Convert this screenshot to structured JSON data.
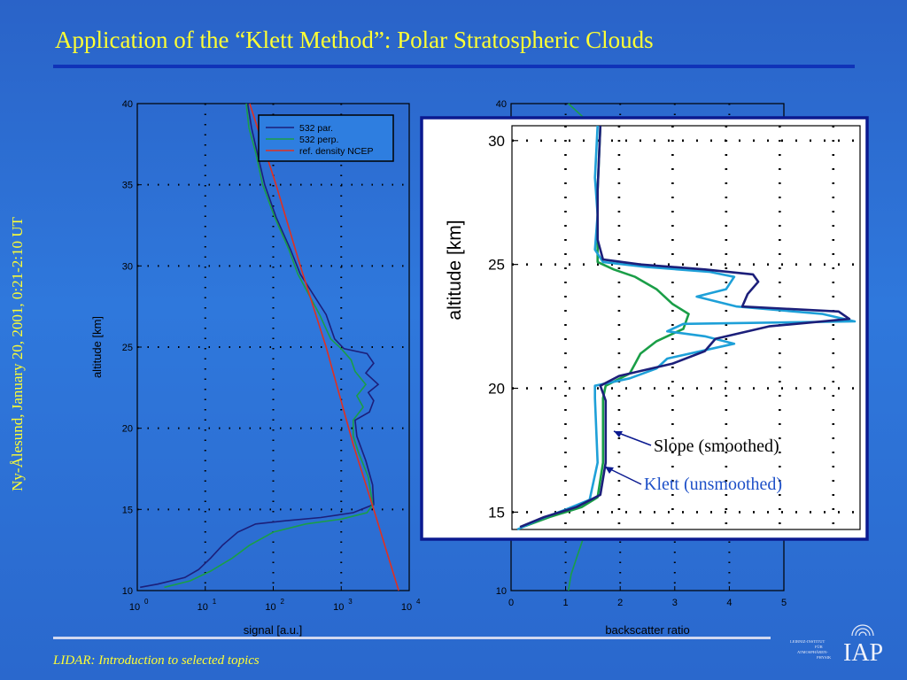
{
  "slide": {
    "title": "Application of the “Klett Method”: Polar Stratospheric Clouds",
    "side_caption": "Ny-Ålesund, January 20, 2001, 0:21-2:10 UT",
    "footer": "LIDAR: Introduction to selected topics",
    "logo_text": "IAP",
    "logo_small_lines": [
      "LEIBNIZ-INSTITUT",
      "FÜR",
      "ATMOSPHÄREN-",
      "PHYSIK"
    ]
  },
  "colors": {
    "background": "#2f78dc",
    "title_text": "#ffff33",
    "dark_blue_line": "#1c1f7a",
    "green_line": "#1a9e47",
    "red_line": "#e03020",
    "light_blue_line": "#1ea0d8",
    "inset_border": "#0b1a90"
  },
  "chart_data": [
    {
      "type": "line",
      "xlabel": "signal [a.u.]",
      "ylabel": "altitude [km]",
      "xscale": "log",
      "xlim": [
        1,
        10000
      ],
      "ylim": [
        10,
        40
      ],
      "xticks": [
        {
          "value": 1,
          "base": "10",
          "exp": "0"
        },
        {
          "value": 10,
          "base": "10",
          "exp": "1"
        },
        {
          "value": 100,
          "base": "10",
          "exp": "2"
        },
        {
          "value": 1000,
          "base": "10",
          "exp": "3"
        },
        {
          "value": 10000,
          "base": "10",
          "exp": "4"
        }
      ],
      "yticks": [
        10,
        15,
        20,
        25,
        30,
        35,
        40
      ],
      "grid": true,
      "legend_position": "top-right",
      "series": [
        {
          "name": "532 par.",
          "color": "#1c1f7a",
          "points": [
            [
              1.1,
              10.2
            ],
            [
              2,
              10.4
            ],
            [
              5,
              10.8
            ],
            [
              8,
              11.3
            ],
            [
              12,
              12
            ],
            [
              18,
              12.8
            ],
            [
              30,
              13.6
            ],
            [
              55,
              14.1
            ],
            [
              150,
              14.3
            ],
            [
              500,
              14.5
            ],
            [
              1500,
              14.8
            ],
            [
              3000,
              15.3
            ],
            [
              2900,
              16.5
            ],
            [
              2300,
              18
            ],
            [
              1700,
              19.5
            ],
            [
              1600,
              20.5
            ],
            [
              2600,
              21
            ],
            [
              3000,
              21.7
            ],
            [
              2500,
              22.2
            ],
            [
              3500,
              22.7
            ],
            [
              2300,
              23.4
            ],
            [
              3000,
              24
            ],
            [
              2400,
              24.6
            ],
            [
              1100,
              24.9
            ],
            [
              800,
              25.5
            ],
            [
              600,
              27
            ],
            [
              250,
              29.5
            ],
            [
              180,
              31
            ],
            [
              110,
              33
            ],
            [
              75,
              35
            ],
            [
              58,
              37
            ],
            [
              48,
              38.5
            ],
            [
              42,
              40
            ]
          ]
        },
        {
          "name": "532 perp.",
          "color": "#1a9e47",
          "points": [
            [
              2.5,
              10.2
            ],
            [
              6,
              10.6
            ],
            [
              12,
              11.2
            ],
            [
              25,
              12
            ],
            [
              45,
              12.8
            ],
            [
              100,
              13.6
            ],
            [
              300,
              14.1
            ],
            [
              1000,
              14.4
            ],
            [
              2400,
              14.8
            ],
            [
              2900,
              15.3
            ],
            [
              2500,
              17
            ],
            [
              1800,
              18.5
            ],
            [
              1500,
              19.5
            ],
            [
              1500,
              20.5
            ],
            [
              2100,
              21.3
            ],
            [
              1700,
              22
            ],
            [
              2300,
              22.7
            ],
            [
              1600,
              23.5
            ],
            [
              1400,
              24.2
            ],
            [
              1000,
              24.9
            ],
            [
              700,
              25.5
            ],
            [
              480,
              27
            ],
            [
              230,
              29.5
            ],
            [
              170,
              31
            ],
            [
              105,
              33
            ],
            [
              70,
              35
            ],
            [
              55,
              37
            ],
            [
              44,
              38.5
            ],
            [
              40,
              40
            ]
          ]
        },
        {
          "name": "ref. density NCEP",
          "color": "#e03020",
          "points": [
            [
              7000,
              10
            ],
            [
              3000,
              15
            ],
            [
              1500,
              19
            ],
            [
              600,
              25
            ],
            [
              250,
              30
            ],
            [
              110,
              35
            ],
            [
              45,
              40
            ]
          ]
        }
      ]
    },
    {
      "type": "line",
      "xlabel": "backscatter ratio",
      "ylabel": "",
      "xlim": [
        0,
        5
      ],
      "ylim": [
        10,
        40
      ],
      "xticks": [
        0,
        1,
        2,
        3,
        4,
        5
      ],
      "yticks": [
        10,
        40
      ],
      "grid": true,
      "series": [
        {
          "color": "#1a9e47",
          "points": [
            [
              1.05,
              10
            ],
            [
              1.1,
              11
            ],
            [
              1.2,
              12
            ],
            [
              1.3,
              13
            ],
            [
              1.4,
              14
            ],
            [
              1.5,
              15
            ],
            [
              1.55,
              17
            ],
            [
              1.55,
              20
            ],
            [
              1.7,
              38
            ],
            [
              1.05,
              40
            ]
          ]
        }
      ]
    },
    {
      "type": "line",
      "title": "",
      "ylabel": "altitude [km]",
      "xlim": [
        0,
        6.5
      ],
      "ylim": [
        14.3,
        30.6
      ],
      "xticks": [],
      "yticks": [
        15,
        20,
        25,
        30
      ],
      "grid": true,
      "series": [
        {
          "color": "#1c1f7a",
          "points": [
            [
              0.15,
              14.4
            ],
            [
              0.6,
              14.8
            ],
            [
              1.2,
              15.2
            ],
            [
              1.65,
              15.7
            ],
            [
              1.75,
              17
            ],
            [
              1.75,
              19.5
            ],
            [
              1.65,
              20.1
            ],
            [
              2.0,
              20.5
            ],
            [
              3.0,
              21.0
            ],
            [
              3.6,
              21.5
            ],
            [
              3.8,
              22.0
            ],
            [
              4.8,
              22.5
            ],
            [
              6.3,
              22.8
            ],
            [
              6.1,
              23.1
            ],
            [
              4.3,
              23.3
            ],
            [
              4.4,
              23.8
            ],
            [
              4.6,
              24.3
            ],
            [
              4.5,
              24.6
            ],
            [
              3.6,
              24.8
            ],
            [
              2.4,
              25.0
            ],
            [
              1.7,
              25.2
            ],
            [
              1.6,
              26
            ],
            [
              1.6,
              28
            ],
            [
              1.65,
              30.6
            ]
          ]
        },
        {
          "color": "#1ea0d8",
          "points": [
            [
              0.1,
              14.3
            ],
            [
              0.5,
              14.7
            ],
            [
              1.0,
              15.1
            ],
            [
              1.45,
              15.5
            ],
            [
              1.6,
              17
            ],
            [
              1.55,
              19.6
            ],
            [
              1.55,
              20.1
            ],
            [
              2.2,
              20.4
            ],
            [
              2.7,
              20.8
            ],
            [
              2.9,
              21.2
            ],
            [
              4.15,
              21.8
            ],
            [
              3.6,
              22.1
            ],
            [
              2.9,
              22.3
            ],
            [
              3.2,
              22.6
            ],
            [
              6.4,
              22.7
            ],
            [
              5.8,
              23.0
            ],
            [
              4.2,
              23.3
            ],
            [
              3.45,
              23.7
            ],
            [
              4.0,
              24.0
            ],
            [
              4.15,
              24.5
            ],
            [
              3.7,
              24.7
            ],
            [
              2.5,
              24.9
            ],
            [
              1.7,
              25.1
            ],
            [
              1.55,
              25.6
            ],
            [
              1.6,
              27
            ],
            [
              1.55,
              28.5
            ],
            [
              1.6,
              30.6
            ]
          ]
        },
        {
          "color": "#1a9e47",
          "points": [
            [
              0.2,
              14.4
            ],
            [
              0.7,
              14.8
            ],
            [
              1.3,
              15.2
            ],
            [
              1.6,
              15.6
            ],
            [
              1.7,
              17
            ],
            [
              1.7,
              19.6
            ],
            [
              1.75,
              20.1
            ],
            [
              2.2,
              20.6
            ],
            [
              2.3,
              21.0
            ],
            [
              2.4,
              21.4
            ],
            [
              2.7,
              21.9
            ],
            [
              3.2,
              22.4
            ],
            [
              3.3,
              23.0
            ],
            [
              3.0,
              23.4
            ],
            [
              2.7,
              24.0
            ],
            [
              2.3,
              24.5
            ],
            [
              1.9,
              24.8
            ],
            [
              1.6,
              25.1
            ],
            [
              1.6,
              26
            ],
            [
              1.6,
              28
            ],
            [
              1.65,
              30.6
            ]
          ]
        }
      ],
      "annotations": [
        {
          "text": "Slope (smoothed)",
          "color": "#000000"
        },
        {
          "text": "Klett (unsmoothed)",
          "color": "#1e50c8"
        }
      ]
    }
  ]
}
